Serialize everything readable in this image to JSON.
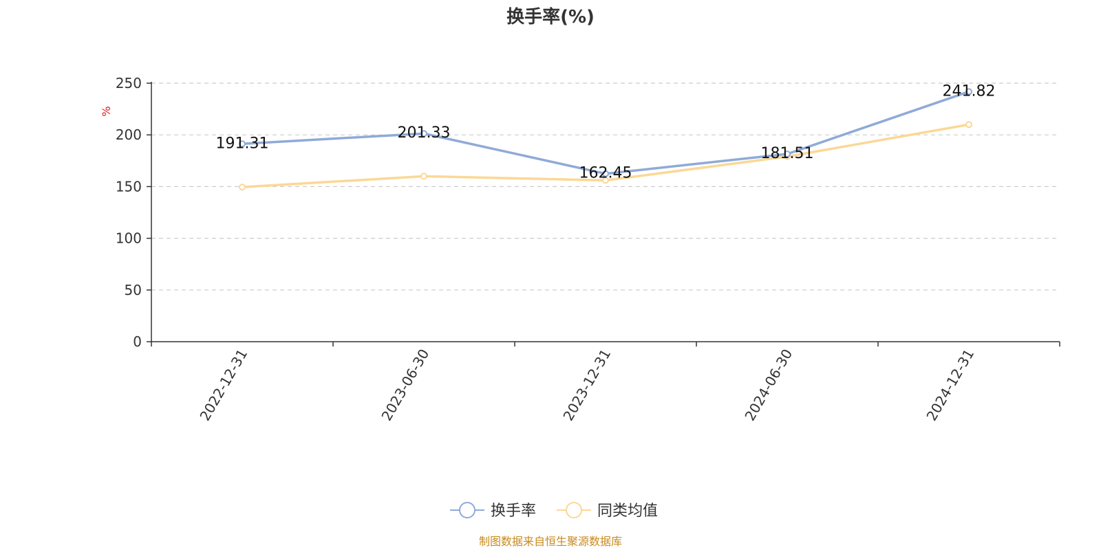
{
  "chart_data": {
    "type": "line",
    "title": "换手率(%)",
    "ylabel": "%",
    "xlabel": "",
    "categories": [
      "2022-12-31",
      "2023-06-30",
      "2023-12-31",
      "2024-06-30",
      "2024-12-31"
    ],
    "ylim": [
      0,
      250
    ],
    "yticks": [
      0,
      50,
      100,
      150,
      200,
      250
    ],
    "grid": true,
    "legend_position": "bottom",
    "series": [
      {
        "name": "换手率",
        "color": "#8eaad8",
        "values": [
          191.31,
          201.33,
          162.45,
          181.51,
          241.82
        ],
        "labels": [
          "191.31",
          "201.33",
          "162.45",
          "181.51",
          "241.82"
        ]
      },
      {
        "name": "同类均值",
        "color": "#fbd896",
        "values": [
          149.5,
          160.0,
          156.0,
          179.0,
          210.0
        ]
      }
    ]
  },
  "footer": {
    "source_text": "制图数据来自恒生聚源数据库"
  }
}
